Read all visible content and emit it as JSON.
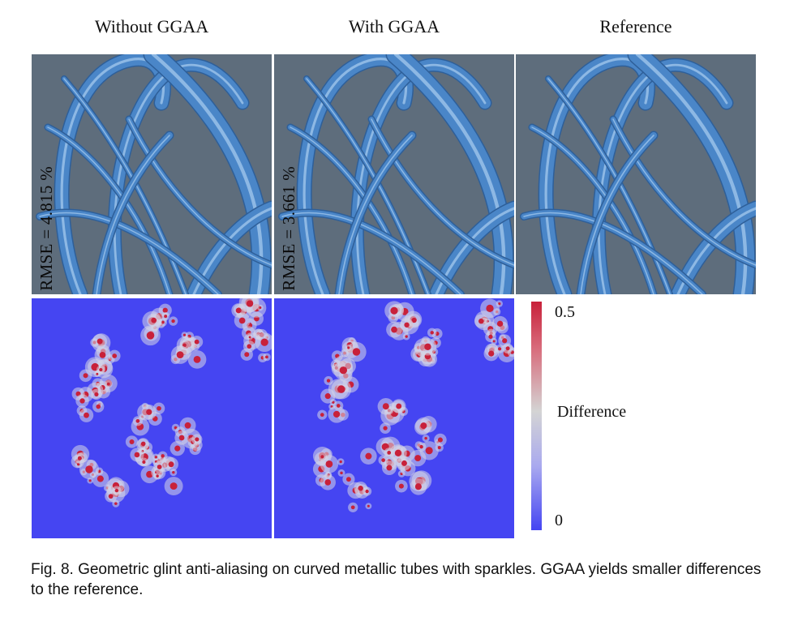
{
  "figure": {
    "columns": [
      {
        "title": "Without GGAA",
        "rmse": "RMSE = 4.815 %"
      },
      {
        "title": "With GGAA",
        "rmse": "RMSE = 3.661 %"
      },
      {
        "title": "Reference",
        "rmse": ""
      }
    ],
    "colorbar": {
      "max_label": "0.5",
      "min_label": "0",
      "title": "Difference",
      "colors": {
        "high": "#c8213a",
        "mid": "#d4d4d4",
        "low": "#4545f2"
      }
    },
    "background_color": "#5e6d7c",
    "tube_color": "#4a86c8",
    "difference_background": "#4545f2"
  },
  "caption": "Fig. 8.  Geometric glint anti-aliasing on curved metallic tubes with sparkles. GGAA yields smaller differences to the reference."
}
